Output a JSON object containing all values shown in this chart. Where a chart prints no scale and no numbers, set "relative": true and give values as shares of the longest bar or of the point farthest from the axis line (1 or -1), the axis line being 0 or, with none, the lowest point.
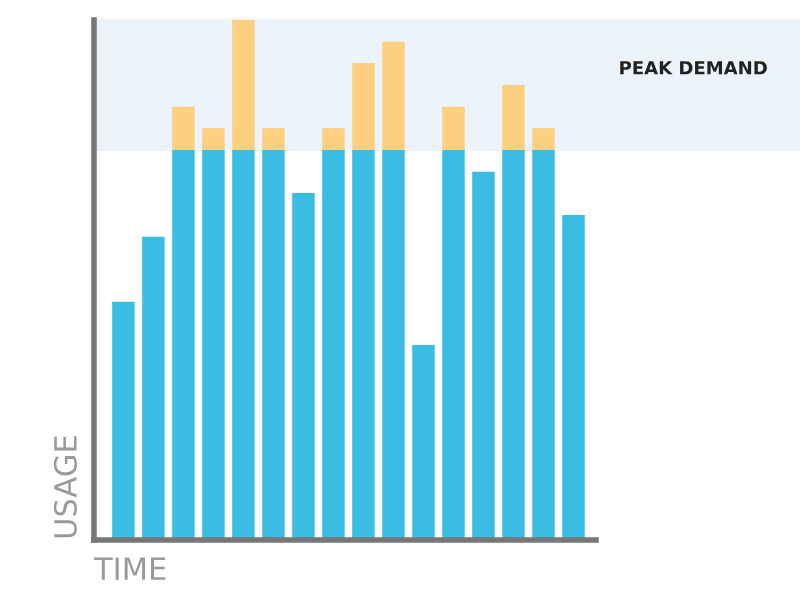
{
  "chart_data": {
    "type": "bar",
    "stacked": true,
    "relative": true,
    "xlabel": "TIME",
    "ylabel": "USAGE",
    "categories": [
      null,
      null,
      null,
      null,
      null,
      null,
      null,
      null,
      null,
      null,
      null,
      null,
      null,
      null,
      null,
      null
    ],
    "series": [
      {
        "color": "#3bbde3",
        "values": [
          0.458,
          0.583,
          0.75,
          0.75,
          0.75,
          0.75,
          0.667,
          0.75,
          0.75,
          0.75,
          0.375,
          0.75,
          0.708,
          0.75,
          0.75,
          0.625
        ]
      },
      {
        "color": "#fdd07f",
        "values": [
          0,
          0,
          0.083,
          0.042,
          0.25,
          0.042,
          0,
          0.042,
          0.167,
          0.208,
          0,
          0.083,
          0,
          0.125,
          0.042,
          0
        ]
      }
    ],
    "bands": [
      {
        "axis": "y",
        "from": 0.75,
        "to": 1,
        "label": "PEAK DEMAND",
        "color": "#edf3fb"
      }
    ]
  }
}
